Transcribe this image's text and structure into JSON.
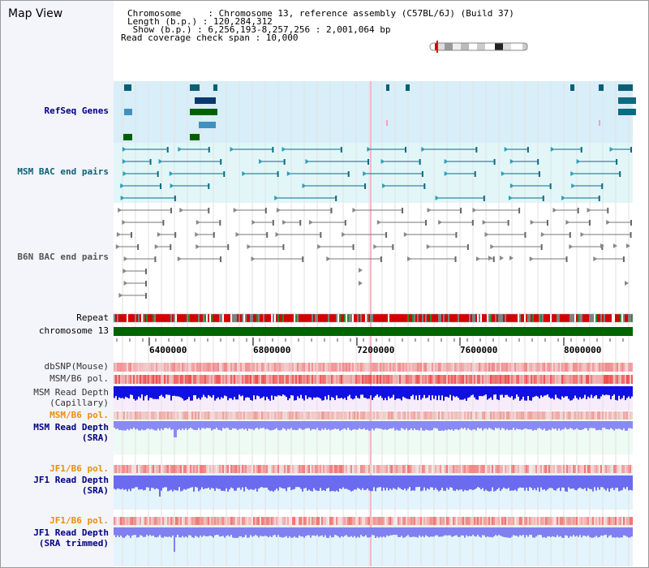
{
  "window": {
    "title": "Map View"
  },
  "info": {
    "chromosome_line": "Chromosome     : Chromosome 13, reference assembly (C57BL/6J) (Build 37)",
    "length_line": "Length (b.p.) : 120,284,312",
    "show_line": " Show (b.p.) : 6,256,193-8,257,256 : 2,001,064 bp",
    "coverage_line": "Read coverage check span : 10,000"
  },
  "tracks": {
    "refseq": "RefSeq Genes",
    "msm_bac": "MSM BAC end pairs",
    "b6n_bac": "B6N BAC end pairs",
    "repeat": "Repeat",
    "chromosome": "chromosome 13",
    "dbsnp": "dbSNP(Mouse)",
    "msm_b6_pol_1": "MSM/B6 pol.",
    "msm_depth_cap_1": "MSM Read Depth",
    "msm_depth_cap_2": "(Capillary)",
    "msm_b6_pol_2": "MSM/B6 pol.",
    "msm_depth_sra_1": "MSM Read Depth",
    "msm_depth_sra_2": "(SRA)",
    "jf1_b6_pol_1": "JF1/B6 pol.",
    "jf1_depth_sra_1": "JF1 Read Depth",
    "jf1_depth_sra_2": "(SRA)",
    "jf1_b6_pol_2": "JF1/B6 pol.",
    "jf1_depth_trim_1": "JF1 Read Depth",
    "jf1_depth_trim_2": "(SRA trimmed)"
  },
  "axis": {
    "ticks": [
      "6400000",
      "6800000",
      "7200000",
      "7600000",
      "8000000"
    ],
    "range": [
      6256193,
      8257256
    ]
  },
  "colors": {
    "refseq_bg": "#d8eef8",
    "bac_bg": "#e2f6f8",
    "teal": "#0b6b82",
    "grey_feature": "#777777",
    "repeat_red": "#d40000",
    "chromosome_green": "#006400",
    "depth_blue": "#1010e0",
    "depth_light": "#6b6bf0",
    "pol_red": "#f06060"
  }
}
